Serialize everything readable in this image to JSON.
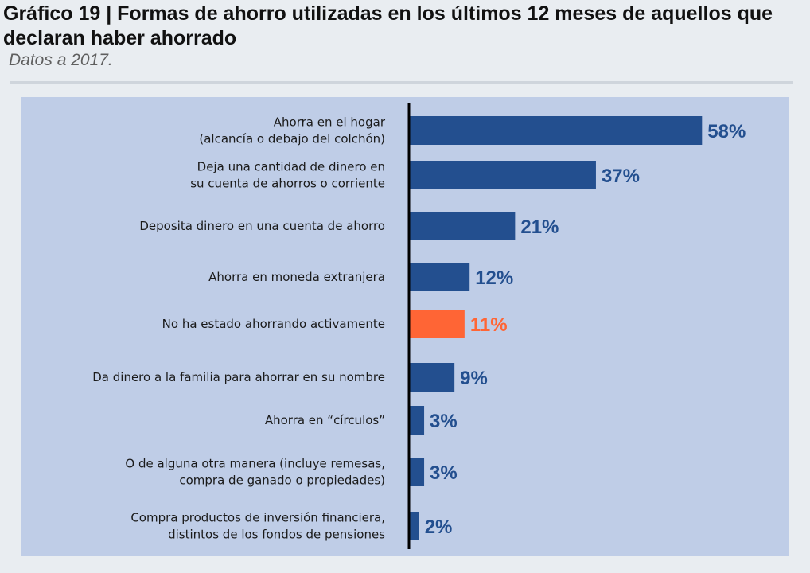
{
  "header": {
    "title": "Gráfico 19 | Formas de ahorro utilizadas en los últimos 12 meses de aquellos que declaran haber ahorrado",
    "subtitle": "Datos a 2017."
  },
  "colors": {
    "bar": "#234f8f",
    "highlight": "#ff6535",
    "label_default": "#234f8f",
    "label_highlight": "#ff6535",
    "axis": "#000000"
  },
  "chart_data": {
    "type": "bar",
    "orientation": "horizontal",
    "categories": [
      [
        "Ahorra en el hogar",
        "(alcancía o debajo del colchón)"
      ],
      [
        "Deja una cantidad de dinero en",
        "su cuenta de ahorros o corriente"
      ],
      [
        "Deposita dinero en una cuenta de ahorro"
      ],
      [
        "Ahorra en moneda extranjera"
      ],
      [
        "No ha estado ahorrando activamente"
      ],
      [
        "Da dinero a la familia para ahorrar en su nombre"
      ],
      [
        "Ahorra en “círculos”"
      ],
      [
        "O de alguna otra manera (incluye remesas,",
        "compra de ganado o propiedades)"
      ],
      [
        "Compra productos de inversión financiera,",
        "distintos de los fondos de pensiones"
      ]
    ],
    "values": [
      58,
      37,
      21,
      12,
      11,
      9,
      3,
      3,
      2
    ],
    "value_labels": [
      "58%",
      "37%",
      "21%",
      "12%",
      "11%",
      "9%",
      "3%",
      "3%",
      "2%"
    ],
    "highlight_index": 4,
    "xlim": [
      0,
      100
    ],
    "grid": false,
    "legend": "none"
  }
}
